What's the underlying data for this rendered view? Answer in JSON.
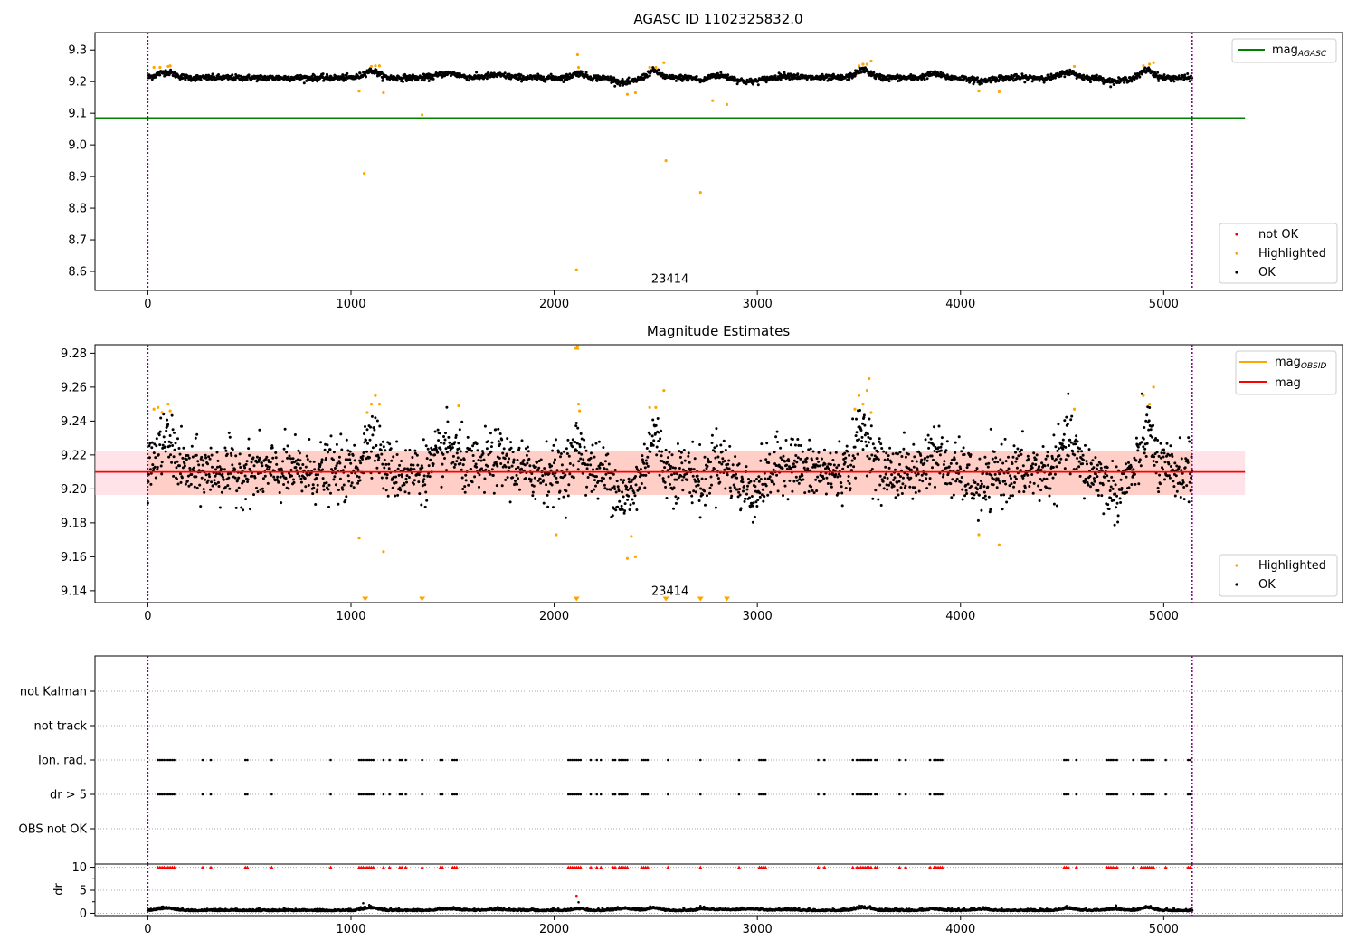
{
  "figure": {
    "panel1_title": "AGASC ID 1102325832.0",
    "panel2_title": "Magnitude Estimates"
  },
  "colors": {
    "ok": "#000000",
    "highlighted": "#ffa500",
    "not_ok": "#ff0000",
    "mag_agasc": "#008000",
    "mag": "#ff0000",
    "mag_obsid": "#ffa500",
    "band": "#ffc0cb",
    "obs_boundary": "#800080"
  },
  "chart_data": [
    {
      "type": "scatter",
      "title": "AGASC ID 1102325832.0",
      "xlim": [
        -260,
        5880
      ],
      "ylim": [
        8.54,
        9.355
      ],
      "x_ticks": [
        0,
        1000,
        2000,
        3000,
        4000,
        5000
      ],
      "y_ticks": [
        8.6,
        8.7,
        8.8,
        8.9,
        9.0,
        9.1,
        9.2,
        9.3
      ],
      "y_tick_labels": [
        "8.6",
        "8.7",
        "8.8",
        "8.9",
        "9.0",
        "9.1",
        "9.2",
        "9.3"
      ],
      "observation_boundaries": [
        0,
        5140
      ],
      "annotation": {
        "text": "23414",
        "x": 2570,
        "y": 8.565
      },
      "mag_agasc": {
        "value": 9.085,
        "x_range": [
          -260,
          5400
        ]
      },
      "ok_series": {
        "name": "OK",
        "x_range": [
          0,
          5140
        ],
        "base": 9.212,
        "noise": 0.0085,
        "bumps": [
          {
            "x": 90,
            "amp": 0.018,
            "width": 60
          },
          {
            "x": 1100,
            "amp": 0.022,
            "width": 50
          },
          {
            "x": 1480,
            "amp": 0.014,
            "width": 70
          },
          {
            "x": 1720,
            "amp": 0.008,
            "width": 80
          },
          {
            "x": 2120,
            "amp": 0.015,
            "width": 40
          },
          {
            "x": 2350,
            "amp": -0.016,
            "width": 60
          },
          {
            "x": 2490,
            "amp": 0.022,
            "width": 40
          },
          {
            "x": 2730,
            "amp": -0.012,
            "width": 30
          },
          {
            "x": 2800,
            "amp": 0.008,
            "width": 70
          },
          {
            "x": 2960,
            "amp": -0.012,
            "width": 80
          },
          {
            "x": 3150,
            "amp": 0.007,
            "width": 60
          },
          {
            "x": 3520,
            "amp": 0.025,
            "width": 50
          },
          {
            "x": 3870,
            "amp": 0.012,
            "width": 50
          },
          {
            "x": 4100,
            "amp": -0.01,
            "width": 60
          },
          {
            "x": 4530,
            "amp": 0.018,
            "width": 50
          },
          {
            "x": 4760,
            "amp": -0.012,
            "width": 60
          },
          {
            "x": 4920,
            "amp": 0.025,
            "width": 40
          }
        ]
      },
      "highlighted_points": [
        [
          30,
          9.245
        ],
        [
          60,
          9.245
        ],
        [
          100,
          9.248
        ],
        [
          110,
          9.25
        ],
        [
          1040,
          9.17
        ],
        [
          1065,
          8.91
        ],
        [
          1100,
          9.248
        ],
        [
          1120,
          9.25
        ],
        [
          1140,
          9.25
        ],
        [
          1160,
          9.165
        ],
        [
          1350,
          9.095
        ],
        [
          2110,
          8.605
        ],
        [
          2115,
          9.285
        ],
        [
          2120,
          9.245
        ],
        [
          2360,
          9.16
        ],
        [
          2400,
          9.165
        ],
        [
          2470,
          9.245
        ],
        [
          2500,
          9.245
        ],
        [
          2540,
          9.26
        ],
        [
          2550,
          8.95
        ],
        [
          2720,
          8.85
        ],
        [
          2780,
          9.14
        ],
        [
          2850,
          9.128
        ],
        [
          3500,
          9.25
        ],
        [
          3520,
          9.255
        ],
        [
          3540,
          9.255
        ],
        [
          3560,
          9.265
        ],
        [
          4090,
          9.17
        ],
        [
          4190,
          9.168
        ],
        [
          4560,
          9.248
        ],
        [
          4900,
          9.25
        ],
        [
          4930,
          9.255
        ],
        [
          4950,
          9.26
        ]
      ],
      "legend_top": [
        {
          "label": "mag",
          "sub": "AGASC"
        }
      ],
      "legend_bottom": [
        {
          "label": "not OK"
        },
        {
          "label": "Highlighted"
        },
        {
          "label": "OK"
        }
      ]
    },
    {
      "type": "scatter",
      "title": "Magnitude Estimates",
      "xlim": [
        -260,
        5880
      ],
      "ylim": [
        9.133,
        9.285
      ],
      "x_ticks": [
        0,
        1000,
        2000,
        3000,
        4000,
        5000
      ],
      "y_ticks": [
        9.14,
        9.16,
        9.18,
        9.2,
        9.22,
        9.24,
        9.26,
        9.28
      ],
      "y_tick_labels": [
        "9.14",
        "9.16",
        "9.18",
        "9.20",
        "9.22",
        "9.24",
        "9.26",
        "9.28"
      ],
      "observation_boundaries": [
        0,
        5140
      ],
      "annotation": {
        "text": "23414",
        "x": 2570,
        "y": 9.1375
      },
      "mag": {
        "value": 9.21,
        "band": [
          9.1965,
          9.2225
        ],
        "x_range": [
          -260,
          5400
        ]
      },
      "highlighted_points": [
        [
          30,
          9.247
        ],
        [
          50,
          9.248
        ],
        [
          70,
          9.245
        ],
        [
          100,
          9.25
        ],
        [
          110,
          9.246
        ],
        [
          1040,
          9.171
        ],
        [
          1080,
          9.245
        ],
        [
          1100,
          9.25
        ],
        [
          1120,
          9.255
        ],
        [
          1140,
          9.25
        ],
        [
          1160,
          9.163
        ],
        [
          1530,
          9.249
        ],
        [
          2010,
          9.173
        ],
        [
          2115,
          9.284
        ],
        [
          2120,
          9.25
        ],
        [
          2125,
          9.246
        ],
        [
          2360,
          9.159
        ],
        [
          2380,
          9.172
        ],
        [
          2400,
          9.16
        ],
        [
          2470,
          9.248
        ],
        [
          2500,
          9.248
        ],
        [
          2540,
          9.258
        ],
        [
          3480,
          9.247
        ],
        [
          3500,
          9.255
        ],
        [
          3520,
          9.25
        ],
        [
          3540,
          9.258
        ],
        [
          3550,
          9.265
        ],
        [
          3560,
          9.245
        ],
        [
          4090,
          9.173
        ],
        [
          4190,
          9.167
        ],
        [
          4560,
          9.247
        ],
        [
          4900,
          9.255
        ],
        [
          4930,
          9.25
        ],
        [
          4950,
          9.26
        ]
      ],
      "clipped_low_x": [
        1070,
        1350,
        2110,
        2550,
        2720,
        2850
      ],
      "clipped_high_x": [
        2110
      ],
      "legend_top": [
        {
          "label": "mag",
          "sub": "OBSID"
        },
        {
          "label": "mag"
        }
      ],
      "legend_bottom": [
        {
          "label": "Highlighted"
        },
        {
          "label": "OK"
        }
      ]
    },
    {
      "type": "scatter",
      "title": "",
      "xlim": [
        -260,
        5880
      ],
      "categories": [
        "not Kalman",
        "not track",
        "Ion. rad.",
        "dr > 5",
        "OBS not OK"
      ],
      "flag_x": [
        50,
        60,
        70,
        80,
        90,
        100,
        110,
        120,
        130,
        270,
        310,
        480,
        490,
        610,
        900,
        1040,
        1050,
        1060,
        1070,
        1080,
        1090,
        1100,
        1110,
        1160,
        1190,
        1240,
        1250,
        1270,
        1350,
        1440,
        1450,
        1500,
        1510,
        1520,
        2070,
        2080,
        2090,
        2100,
        2110,
        2120,
        2130,
        2180,
        2210,
        2230,
        2290,
        2300,
        2320,
        2330,
        2340,
        2350,
        2360,
        2430,
        2440,
        2450,
        2460,
        2560,
        2720,
        2910,
        3010,
        3020,
        3030,
        3040,
        3300,
        3330,
        3470,
        3490,
        3500,
        3510,
        3520,
        3530,
        3540,
        3550,
        3560,
        3580,
        3590,
        3700,
        3730,
        3850,
        3870,
        3880,
        3890,
        3900,
        3910,
        4510,
        4520,
        4530,
        4570,
        4720,
        4730,
        4740,
        4750,
        4760,
        4770,
        4850,
        4890,
        4900,
        4910,
        4920,
        4930,
        4940,
        4950,
        5010,
        5120,
        5130
      ],
      "flag_rows": [
        "Ion. rad.",
        "dr > 5"
      ]
    },
    {
      "type": "scatter",
      "title": "",
      "ylabel": "dr",
      "xlim": [
        -260,
        5880
      ],
      "ylim": [
        -0.5,
        10.7
      ],
      "y_ticks": [
        0,
        5,
        10
      ],
      "y_tick_labels": [
        "0",
        "5",
        "10"
      ],
      "x_ticks": [
        0,
        1000,
        2000,
        3000,
        4000,
        5000
      ],
      "capped_value": 10,
      "dr_outliers": [
        [
          2110,
          3.8
        ],
        [
          2120,
          2.4
        ],
        [
          1060,
          2.2
        ],
        [
          1090,
          1.8
        ],
        [
          2720,
          1.6
        ],
        [
          3500,
          1.7
        ]
      ]
    }
  ]
}
